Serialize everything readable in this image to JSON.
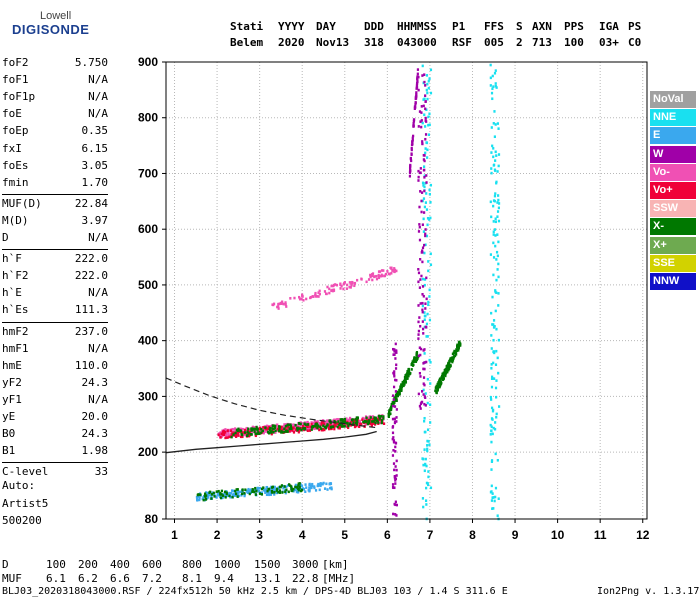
{
  "logo": {
    "top": "Lowell",
    "main": "DIGISONDE"
  },
  "header": {
    "labels": [
      "Stati",
      "YYYY",
      "DAY",
      "DDD",
      "HHMMSS",
      "P1",
      "FFS",
      "S",
      "AXN",
      "PPS",
      "IGA",
      "PS"
    ],
    "values": [
      "Belem",
      "2020",
      "Nov13",
      "318",
      "043000",
      "RSF",
      "005",
      "2",
      "713",
      "100",
      "03+",
      "C0"
    ]
  },
  "params": [
    {
      "name": "foF2",
      "value": "5.750"
    },
    {
      "name": "foF1",
      "value": "N/A"
    },
    {
      "name": "foF1p",
      "value": "N/A"
    },
    {
      "name": "foE",
      "value": "N/A"
    },
    {
      "name": "foEp",
      "value": "0.35"
    },
    {
      "name": "fxI",
      "value": "6.15"
    },
    {
      "name": "foEs",
      "value": "3.05"
    },
    {
      "name": "fmin",
      "value": "1.70"
    },
    {
      "name": "MUF(D)",
      "value": "22.84"
    },
    {
      "name": "M(D)",
      "value": "3.97"
    },
    {
      "name": "D",
      "value": "N/A"
    },
    {
      "name": "h`F",
      "value": "222.0"
    },
    {
      "name": "h`F2",
      "value": "222.0"
    },
    {
      "name": "h`E",
      "value": "N/A"
    },
    {
      "name": "h`Es",
      "value": "111.3"
    },
    {
      "name": "hmF2",
      "value": "237.0"
    },
    {
      "name": "hmF1",
      "value": "N/A"
    },
    {
      "name": "hmE",
      "value": "110.0"
    },
    {
      "name": "yF2",
      "value": "24.3"
    },
    {
      "name": "yF1",
      "value": "N/A"
    },
    {
      "name": "yE",
      "value": "20.0"
    },
    {
      "name": "B0",
      "value": "24.3"
    },
    {
      "name": "B1",
      "value": "1.98"
    },
    {
      "name": "C-level",
      "value": "33"
    }
  ],
  "auto": {
    "label": "Auto:",
    "artist": "Artist5",
    "version": "500200"
  },
  "legend": [
    {
      "label": "NoVal",
      "color": "#a0a0a0"
    },
    {
      "label": "NNE",
      "color": "#19e0f0"
    },
    {
      "label": "E",
      "color": "#3aa8ee"
    },
    {
      "label": "W",
      "color": "#a000a8"
    },
    {
      "label": "Vo-",
      "color": "#f050b4"
    },
    {
      "label": "Vo+",
      "color": "#f00038"
    },
    {
      "label": "SSW",
      "color": "#f8b4b4"
    },
    {
      "label": "X-",
      "color": "#007800"
    },
    {
      "label": "X+",
      "color": "#6eaa50"
    },
    {
      "label": "SSE",
      "color": "#d2d200"
    },
    {
      "label": "NNW",
      "color": "#1010c8"
    }
  ],
  "chart_data": {
    "type": "scatter",
    "xlim": [
      0.8,
      12.1
    ],
    "ylim": [
      80,
      900
    ],
    "xticks": [
      1,
      2,
      3,
      4,
      5,
      6,
      7,
      8,
      9,
      10,
      11,
      12
    ],
    "yticks": [
      80,
      200,
      300,
      400,
      500,
      600,
      700,
      800,
      900
    ],
    "grid": true,
    "legend_position": "right",
    "traces": [
      {
        "color": "#f050b4",
        "x_range": [
          2.0,
          5.9
        ],
        "y_center": [
          235,
          262
        ],
        "count": 500
      },
      {
        "color": "#f00038",
        "x_range": [
          2.0,
          5.9
        ],
        "y_center": [
          233,
          258
        ],
        "count": 200
      },
      {
        "color": "#007800",
        "x_range": [
          2.3,
          5.9
        ],
        "y_center": [
          236,
          262
        ],
        "count": 180
      },
      {
        "color": "#3aa8ee",
        "x_range": [
          1.5,
          4.7
        ],
        "y_center": [
          122,
          142
        ],
        "count": 220
      },
      {
        "color": "#007800",
        "x_range": [
          1.5,
          4.0
        ],
        "y_center": [
          122,
          140
        ],
        "count": 90
      },
      {
        "color": "#f050b4",
        "x_range": [
          3.2,
          6.2
        ],
        "y_center": [
          460,
          530
        ],
        "count": 120
      },
      {
        "color": "#007800",
        "x_range": [
          6.0,
          6.7
        ],
        "y_center": [
          270,
          380
        ],
        "count": 140
      },
      {
        "color": "#007800",
        "x_range": [
          7.1,
          7.7
        ],
        "y_center": [
          310,
          400
        ],
        "count": 160
      },
      {
        "color": "#19e0f0",
        "x_range": [
          6.8,
          7.0
        ],
        "y_center": [
          80,
          900
        ],
        "count": 120
      },
      {
        "color": "#19e0f0",
        "x_range": [
          8.4,
          8.6
        ],
        "y_center": [
          80,
          900
        ],
        "count": 150
      },
      {
        "color": "#a000a8",
        "x_range": [
          6.7,
          6.9
        ],
        "y_center": [
          280,
          880
        ],
        "count": 120
      },
      {
        "color": "#a000a8",
        "x_range": [
          6.1,
          6.2
        ],
        "y_center": [
          80,
          400
        ],
        "count": 70
      },
      {
        "color": "#a000a8",
        "x_range": [
          6.5,
          6.7
        ],
        "y_center": [
          700,
          890
        ],
        "count": 60
      }
    ],
    "profile_solid": {
      "x": [
        0.8,
        1.5,
        2.0,
        2.5,
        3.0,
        3.5,
        4.0,
        4.5,
        5.0,
        5.5,
        5.75
      ],
      "y": [
        199,
        205,
        208,
        211,
        214,
        217,
        220,
        223,
        227,
        232,
        237
      ]
    },
    "profile_dashed": {
      "x": [
        0.8,
        1.2,
        1.8,
        2.4,
        3.0,
        3.6,
        4.2,
        4.8,
        5.4,
        5.75
      ],
      "y": [
        333,
        320,
        302,
        287,
        275,
        266,
        259,
        253,
        247,
        244
      ]
    }
  },
  "footer": {
    "line1_label": "D",
    "line1_values": [
      "100",
      "200",
      "400",
      "600",
      "800",
      "1000",
      "1500",
      "3000"
    ],
    "line1_unit": "[km]",
    "line2_label": "MUF",
    "line2_values": [
      "6.1",
      "6.2",
      "6.6",
      "7.2",
      "8.1",
      "9.4",
      "13.1",
      "22.8"
    ],
    "line2_unit": "[MHz]",
    "line3": "BLJ03_2020318043000.RSF / 224fx512h 50 kHz 2.5 km / DPS-4D BLJ03 103 / 1.4 S 311.6 E",
    "version": "Ion2Png v. 1.3.17"
  }
}
